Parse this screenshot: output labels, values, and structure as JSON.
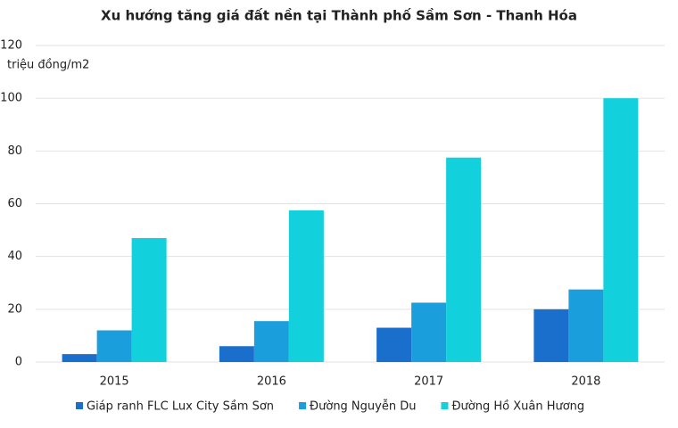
{
  "chart_data": {
    "type": "bar",
    "title": "Xu hướng tăng giá đất nền tại Thành phố Sầm Sơn - Thanh Hóa",
    "y_label": "triệu đồng/m2",
    "categories": [
      "2015",
      "2016",
      "2017",
      "2018"
    ],
    "series": [
      {
        "name": "Giáp ranh FLC Lux City Sầm Sơn",
        "color": "#1a6fcc",
        "values": [
          3,
          6,
          13,
          20
        ]
      },
      {
        "name": "Đường Nguyễn Du",
        "color": "#1a9fdc",
        "values": [
          12,
          15.5,
          22.5,
          27.5
        ]
      },
      {
        "name": "Đường Hồ Xuân Hương",
        "color": "#12d0dc",
        "values": [
          47,
          57.5,
          77.5,
          100
        ]
      }
    ],
    "ylim": [
      0,
      120
    ],
    "yticks": [
      0,
      20,
      40,
      60,
      80,
      100,
      120
    ],
    "grid": true,
    "legend": "bottom"
  }
}
